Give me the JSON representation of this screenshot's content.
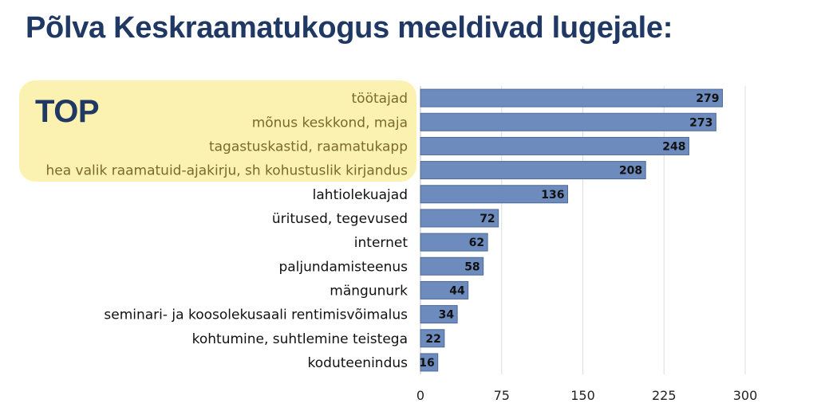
{
  "slide": {
    "title": "Põlva Keskraamatukogus meeldivad lugejale:",
    "highlight_label": "TOP"
  },
  "colors": {
    "title": "#1f3864",
    "bar": "#6d8bbd",
    "highlight_box": "#fbf1b0",
    "highlight_text": "#7a6a2c",
    "normal_text": "#111111",
    "grid": "#dddddd"
  },
  "chart_data": {
    "type": "bar",
    "orientation": "horizontal",
    "categories": [
      "töötajad",
      "mõnus keskkond, maja",
      "tagastuskastid, raamatukapp",
      "hea valik raamatuid-ajakirju, sh kohustuslik kirjandus",
      "lahtiolekuajad",
      "üritused, tegevused",
      "internet",
      "paljundamisteenus",
      "mängunurk",
      "seminari- ja koosolekusaali rentimisvõimalus",
      "kohtumine, suhtlemine teistega",
      "koduteenindus"
    ],
    "values": [
      279,
      273,
      248,
      208,
      136,
      72,
      62,
      58,
      44,
      34,
      22,
      16
    ],
    "highlighted_count": 4,
    "xlim": [
      0,
      300
    ],
    "xticks": [
      "0",
      "75",
      "150",
      "225",
      "300"
    ],
    "xtick_values": [
      0,
      75,
      150,
      225,
      300
    ],
    "grid": true,
    "data_labels": true
  }
}
